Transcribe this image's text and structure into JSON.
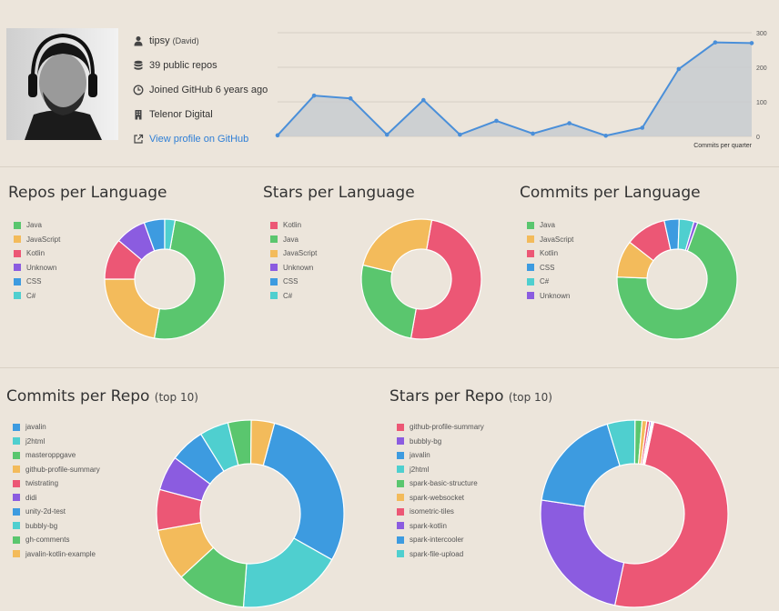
{
  "profile": {
    "username": "tipsy",
    "realname": "(David)",
    "repos": "39 public repos",
    "joined": "Joined GitHub 6 years ago",
    "company": "Telenor Digital",
    "profile_link": "View profile on GitHub"
  },
  "icons": {
    "user": "user-icon",
    "repos": "database-icon",
    "joined": "clock-icon",
    "company": "building-icon",
    "link": "external-link-icon"
  },
  "chart_data": [
    {
      "type": "area",
      "id": "commits-per-quarter",
      "xlabel": "Commits per quarter",
      "values": [
        3,
        118,
        110,
        5,
        105,
        5,
        45,
        8,
        38,
        2,
        25,
        195,
        272,
        270
      ],
      "ylim": [
        0,
        300
      ],
      "yticks": [
        0,
        100,
        200,
        300
      ],
      "color": "#4a8fd9",
      "fill": "#c8ccd0"
    },
    {
      "type": "pie",
      "id": "repos-per-language",
      "title": "Repos per Language",
      "labels": [
        "Java",
        "JavaScript",
        "Kotlin",
        "Unknown",
        "CSS",
        "C#"
      ],
      "values": [
        18,
        8,
        4,
        3,
        2,
        1
      ],
      "colors": [
        "#5ac66e",
        "#f3bb5b",
        "#ec5775",
        "#8b5ce0",
        "#3d9be0",
        "#4fcfcf"
      ]
    },
    {
      "type": "pie",
      "id": "stars-per-language",
      "title": "Stars per Language",
      "labels": [
        "Kotlin",
        "Java",
        "JavaScript",
        "Unknown",
        "CSS",
        "C#"
      ],
      "values": [
        50,
        26,
        24,
        0,
        0,
        0
      ],
      "colors": [
        "#ec5775",
        "#5ac66e",
        "#f3bb5b",
        "#8b5ce0",
        "#3d9be0",
        "#4fcfcf"
      ]
    },
    {
      "type": "pie",
      "id": "commits-per-language",
      "title": "Commits per Language",
      "labels": [
        "Java",
        "JavaScript",
        "Kotlin",
        "CSS",
        "C#",
        "Unknown"
      ],
      "values": [
        70,
        10,
        11,
        4,
        4,
        1
      ],
      "colors": [
        "#5ac66e",
        "#f3bb5b",
        "#ec5775",
        "#3d9be0",
        "#4fcfcf",
        "#8b5ce0"
      ]
    },
    {
      "type": "pie",
      "id": "commits-per-repo",
      "title": "Commits per Repo",
      "title_suffix": "(top 10)",
      "labels": [
        "javalin",
        "j2html",
        "masteroppgave",
        "github-profile-summary",
        "twistrating",
        "didi",
        "unity-2d-test",
        "bubbly-bg",
        "gh-comments",
        "javalin-kotlin-example"
      ],
      "values": [
        29,
        18,
        12,
        9,
        7,
        6,
        6,
        5,
        4,
        4
      ],
      "colors": [
        "#3d9be0",
        "#4fcfcf",
        "#5ac66e",
        "#f3bb5b",
        "#ec5775",
        "#8b5ce0",
        "#3d9be0",
        "#4fcfcf",
        "#5ac66e",
        "#f3bb5b"
      ]
    },
    {
      "type": "pie",
      "id": "stars-per-repo",
      "title": "Stars per Repo",
      "title_suffix": "(top 10)",
      "labels": [
        "github-profile-summary",
        "bubbly-bg",
        "javalin",
        "j2html",
        "spark-basic-structure",
        "spark-websocket",
        "isometric-tiles",
        "spark-kotlin",
        "spark-intercooler",
        "spark-file-upload"
      ],
      "values": [
        50,
        24,
        18,
        4.8,
        1.2,
        0.8,
        0.5,
        0.3,
        0.2,
        0.2
      ],
      "colors": [
        "#ec5775",
        "#8b5ce0",
        "#3d9be0",
        "#4fcfcf",
        "#5ac66e",
        "#f3bb5b",
        "#ec5775",
        "#8b5ce0",
        "#3d9be0",
        "#4fcfcf"
      ]
    }
  ]
}
